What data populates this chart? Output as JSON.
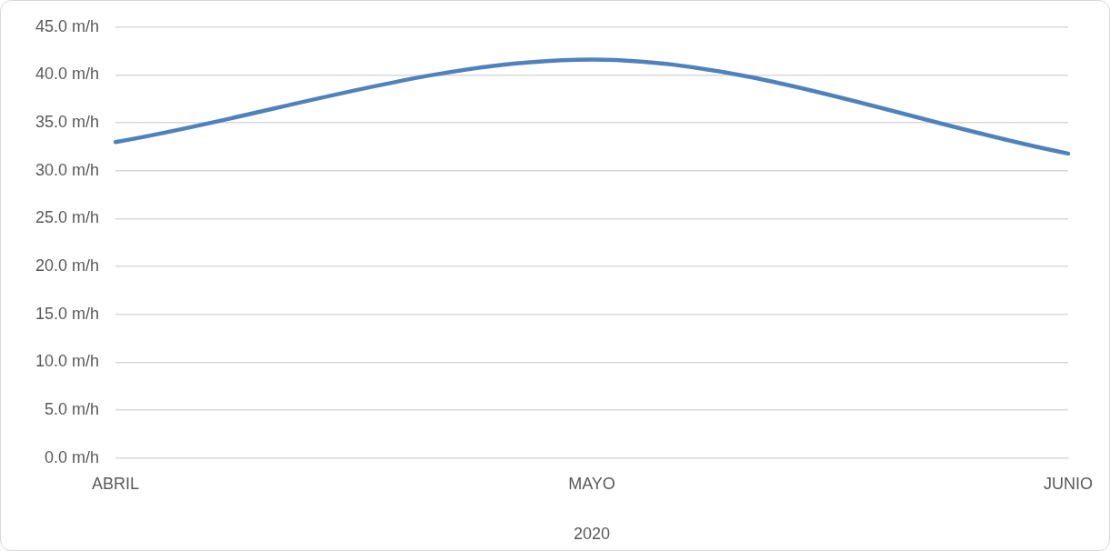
{
  "chart_data": {
    "type": "line",
    "categories": [
      "ABRIL",
      "MAYO",
      "JUNIO"
    ],
    "xlabel": "2020",
    "series": [
      {
        "color": "#4f81bd",
        "values": [
          33.0,
          41.6,
          31.8
        ]
      }
    ],
    "ylim": [
      0,
      45
    ],
    "yticks": [
      {
        "value": 0,
        "label": "0.0 m/h"
      },
      {
        "value": 5,
        "label": "5.0 m/h"
      },
      {
        "value": 10,
        "label": "10.0 m/h"
      },
      {
        "value": 15,
        "label": "15.0 m/h"
      },
      {
        "value": 20,
        "label": "20.0 m/h"
      },
      {
        "value": 25,
        "label": "25.0 m/h"
      },
      {
        "value": 30,
        "label": "30.0 m/h"
      },
      {
        "value": 35,
        "label": "35.0 m/h"
      },
      {
        "value": 40,
        "label": "40.0 m/h"
      },
      {
        "value": 45,
        "label": "45.0 m/h"
      }
    ],
    "grid": "y",
    "legend": false,
    "marker": "none",
    "line_style": "solid"
  }
}
